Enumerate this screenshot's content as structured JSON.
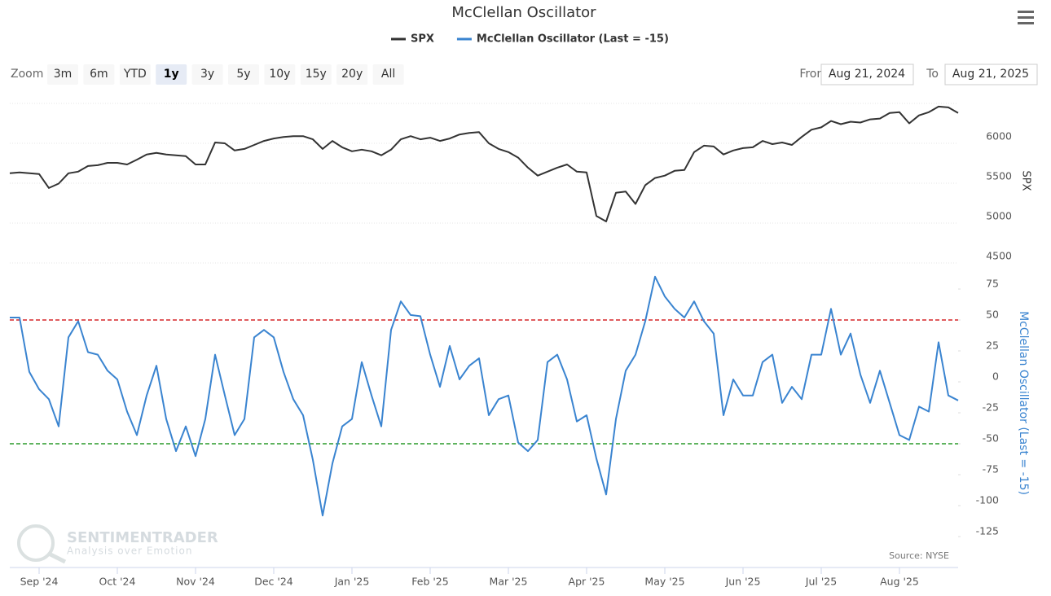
{
  "chart_data": {
    "type": "line",
    "title": "McClellan Oscillator",
    "zoom_label": "Zoom",
    "zoom_buttons": [
      "3m",
      "6m",
      "YTD",
      "1y",
      "3y",
      "5y",
      "10y",
      "15y",
      "20y",
      "All"
    ],
    "zoom_selected": "1y",
    "from_label": "From",
    "from": "Aug 21, 2024",
    "to_label": "To",
    "to": "Aug 21, 2025",
    "source": "Source: NYSE",
    "watermark": "SENTIMENTRADER",
    "watermark_tagline": "Analysis over Emotion",
    "ylabel": "SPX",
    "y2label": "McClellan Oscillator (Last = -15)",
    "categories": [
      null,
      null,
      null,
      "Sep '24",
      null,
      null,
      null,
      null,
      null,
      null,
      null,
      "Oct '24",
      null,
      null,
      null,
      null,
      null,
      null,
      null,
      "Nov '24",
      null,
      null,
      null,
      null,
      null,
      null,
      null,
      "Dec '24",
      null,
      null,
      null,
      null,
      null,
      null,
      null,
      "Jan '25",
      null,
      null,
      null,
      null,
      null,
      null,
      null,
      "Feb '25",
      null,
      null,
      null,
      null,
      null,
      null,
      null,
      "Mar '25",
      null,
      null,
      null,
      null,
      null,
      null,
      null,
      "Apr '25",
      null,
      null,
      null,
      null,
      null,
      null,
      null,
      "May '25",
      null,
      null,
      null,
      null,
      null,
      null,
      null,
      "Jun '25",
      null,
      null,
      null,
      null,
      null,
      null,
      null,
      "Jul '25",
      null,
      null,
      null,
      null,
      null,
      null,
      null,
      "Aug '25",
      null,
      null,
      null,
      null,
      null,
      null
    ],
    "series": [
      {
        "name": "SPX",
        "color": "#333333",
        "values": [
          5625,
          5635,
          5625,
          5615,
          5440,
          5495,
          5625,
          5645,
          5715,
          5725,
          5755,
          5755,
          5735,
          5795,
          5860,
          5880,
          5860,
          5850,
          5840,
          5735,
          5735,
          6010,
          6000,
          5910,
          5930,
          5980,
          6030,
          6060,
          6080,
          6090,
          6090,
          6050,
          5930,
          6030,
          5950,
          5900,
          5920,
          5900,
          5850,
          5920,
          6050,
          6090,
          6050,
          6070,
          6030,
          6060,
          6110,
          6130,
          6140,
          6000,
          5930,
          5890,
          5820,
          5695,
          5595,
          5645,
          5695,
          5735,
          5645,
          5635,
          5090,
          5020,
          5380,
          5395,
          5240,
          5475,
          5565,
          5595,
          5655,
          5665,
          5890,
          5970,
          5960,
          5860,
          5910,
          5940,
          5950,
          6030,
          5990,
          6010,
          5980,
          6080,
          6170,
          6200,
          6280,
          6240,
          6270,
          6260,
          6300,
          6310,
          6380,
          6390,
          6250,
          6350,
          6390,
          6460,
          6450,
          6380
        ]
      },
      {
        "name": "McClellan Oscillator (Last = -15)",
        "color": "#3a84d0",
        "axis": "y2",
        "values": [
          52,
          52,
          8,
          -6,
          -14,
          -36,
          36,
          49,
          24,
          22,
          9,
          2,
          -24,
          -43,
          -11,
          13,
          -30,
          -56,
          -36,
          -60,
          -30,
          22,
          -11,
          -43,
          -30,
          36,
          42,
          36,
          8,
          -14,
          -27,
          -63,
          -108,
          -66,
          -36,
          -30,
          16,
          -11,
          -36,
          42,
          65,
          54,
          53,
          22,
          -4,
          29,
          2,
          13,
          19,
          -27,
          -14,
          -11,
          -49,
          -56,
          -47,
          16,
          22,
          2,
          -32,
          -27,
          -62,
          -91,
          -30,
          9,
          22,
          49,
          85,
          69,
          59,
          52,
          65,
          49,
          39,
          -27,
          2,
          -11,
          -11,
          16,
          22,
          -17,
          -4,
          -14,
          22,
          22,
          59,
          22,
          39,
          6,
          -17,
          9,
          -17,
          -43,
          -47,
          -20,
          -24,
          32,
          -11,
          -15
        ]
      }
    ],
    "thresholds": [
      {
        "value": 50,
        "color": "#d62728"
      },
      {
        "value": -50,
        "color": "#2a9a2a"
      }
    ],
    "ylim": [
      4500,
      6500
    ],
    "yticks": [
      4500,
      5000,
      5500,
      6000
    ],
    "y2lim": [
      -150,
      225
    ],
    "y2ticks": [
      -125,
      -100,
      -75,
      -50,
      -25,
      0,
      25,
      50,
      75
    ],
    "grid": true
  }
}
